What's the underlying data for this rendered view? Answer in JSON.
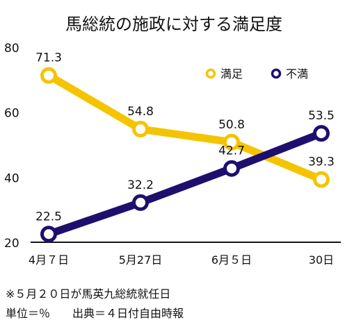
{
  "chart_data": {
    "type": "line",
    "title": "馬総統の施政に対する満足度",
    "categories": [
      "4月７日",
      "5月27日",
      "6月５日",
      "30日"
    ],
    "ylim": [
      20,
      80
    ],
    "yticks": [
      "20",
      "40",
      "60",
      "80"
    ],
    "grid": false,
    "legend_position": "top-right",
    "series": [
      {
        "name": "満足",
        "color": "#f5c400",
        "values": [
          71.3,
          54.8,
          50.8,
          39.3
        ],
        "labels": [
          "71.3",
          "54.8",
          "50.8",
          "39.3"
        ]
      },
      {
        "name": "不満",
        "color": "#1e0f6e",
        "values": [
          22.5,
          32.2,
          42.7,
          53.5
        ],
        "labels": [
          "22.5",
          "32.2",
          "42.7",
          "53.5"
        ]
      }
    ]
  },
  "notes": {
    "line1": "※５月２０日が馬英九総統就任日",
    "line2": "単位＝％　　出典＝４日付自由時報"
  }
}
